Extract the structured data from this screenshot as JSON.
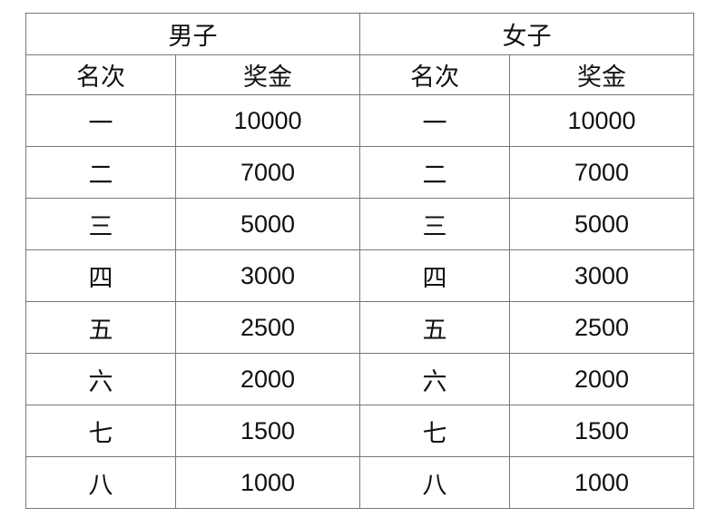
{
  "headers": {
    "men": "男子",
    "women": "女子",
    "rank": "名次",
    "prize": "奖金"
  },
  "rows": [
    {
      "rank": "一",
      "men_prize": "10000",
      "women_rank": "一",
      "women_prize": "10000"
    },
    {
      "rank": "二",
      "men_prize": "7000",
      "women_rank": "二",
      "women_prize": "7000"
    },
    {
      "rank": "三",
      "men_prize": "5000",
      "women_rank": "三",
      "women_prize": "5000"
    },
    {
      "rank": "四",
      "men_prize": "3000",
      "women_rank": "四",
      "women_prize": "3000"
    },
    {
      "rank": "五",
      "men_prize": "2500",
      "women_rank": "五",
      "women_prize": "2500"
    },
    {
      "rank": "六",
      "men_prize": "2000",
      "women_rank": "六",
      "women_prize": "2000"
    },
    {
      "rank": "七",
      "men_prize": "1500",
      "women_rank": "七",
      "women_prize": "1500"
    },
    {
      "rank": "八",
      "men_prize": "1000",
      "women_rank": "八",
      "women_prize": "1000"
    }
  ]
}
